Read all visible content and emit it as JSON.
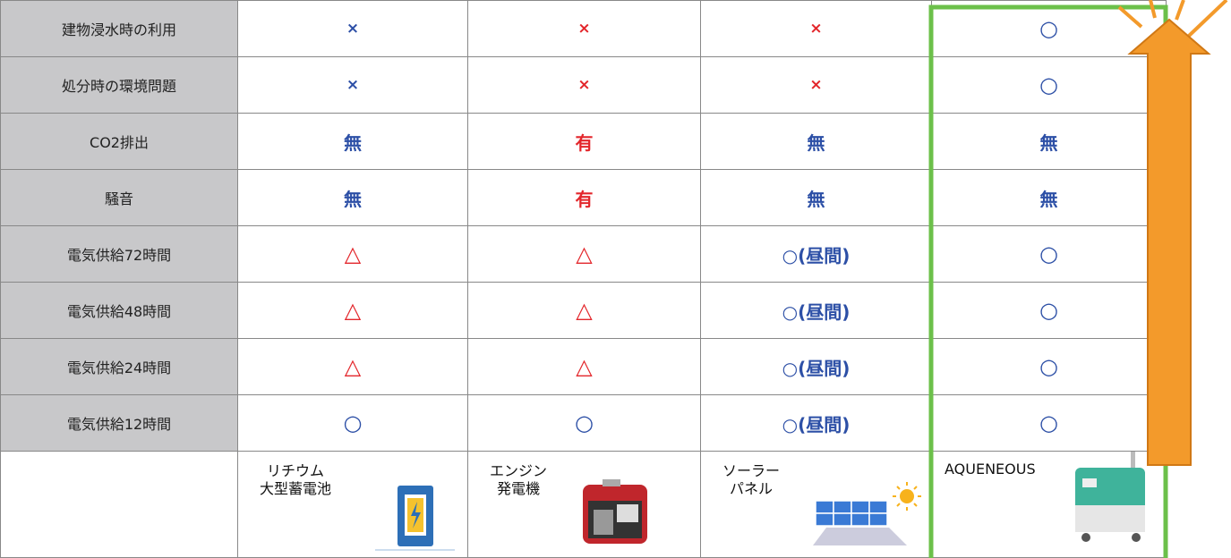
{
  "table": {
    "rows": [
      {
        "label": "建物浸水時の利用",
        "cells": [
          "×",
          "×",
          "×",
          "○"
        ]
      },
      {
        "label": "処分時の環境問題",
        "cells": [
          "×",
          "×",
          "×",
          "○"
        ]
      },
      {
        "label": "CO2排出",
        "cells": [
          "無",
          "有",
          "無",
          "無"
        ]
      },
      {
        "label": "騒音",
        "cells": [
          "無",
          "有",
          "無",
          "無"
        ]
      },
      {
        "label": "電気供給72時間",
        "cells": [
          "△",
          "△",
          "○(昼間)",
          "○"
        ]
      },
      {
        "label": "電気供給48時間",
        "cells": [
          "△",
          "△",
          "○(昼間)",
          "○"
        ]
      },
      {
        "label": "電気供給24時間",
        "cells": [
          "△",
          "△",
          "○(昼間)",
          "○"
        ]
      },
      {
        "label": "電気供給12時間",
        "cells": [
          "○",
          "○",
          "○(昼間)",
          "○"
        ]
      }
    ],
    "products": [
      {
        "lines": [
          "リチウム",
          "大型蓄電池"
        ]
      },
      {
        "lines": [
          "エンジン",
          "発電機"
        ]
      },
      {
        "lines": [
          "ソーラー",
          "パネル"
        ]
      },
      {
        "lines": [
          "AQUENEOUS"
        ]
      }
    ]
  }
}
